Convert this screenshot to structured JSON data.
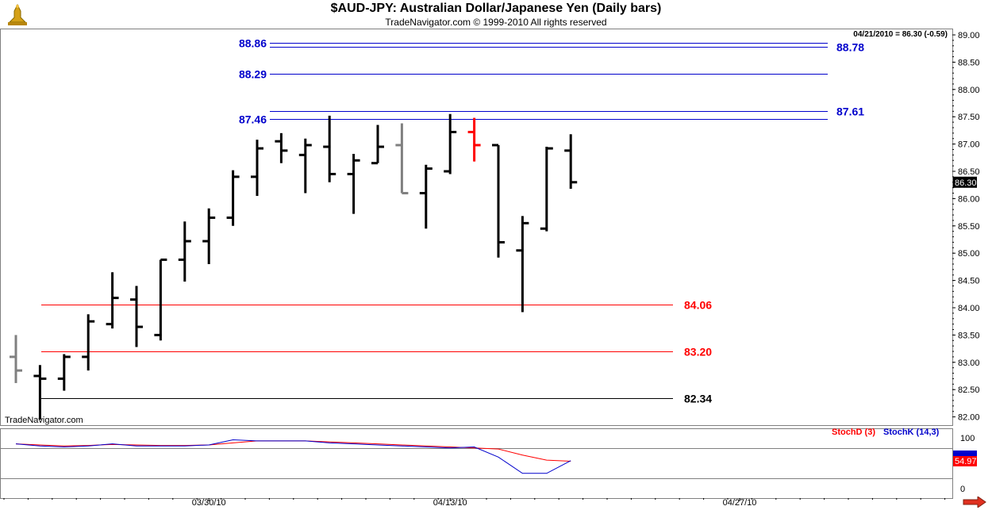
{
  "header": {
    "title": "$AUD-JPY:  Australian Dollar/Japanese Yen  (Daily bars)",
    "copyright": "TradeNavigator.com © 1999-2010 All rights reserved"
  },
  "watermark": "TradeNavigator.com",
  "logo_icon": "gold-bell-logo-icon",
  "nav_icon": "scroll-right-arrow-icon",
  "colors": {
    "bar_black": "#000000",
    "bar_gray": "#808080",
    "bar_red": "#ff0000",
    "blue_line": "#0000cc",
    "red_line": "#ff0000",
    "stoch_d": "#ff0000",
    "stoch_k": "#0000cc"
  },
  "chart_data": [
    {
      "type": "ohlc",
      "title": "$AUD-JPY:  Australian Dollar/Japanese Yen  (Daily bars)",
      "y_axis_side": "right",
      "ylim": [
        81.92,
        89.06
      ],
      "y_ticks": [
        "89.00",
        "88.50",
        "88.00",
        "87.50",
        "87.00",
        "86.50",
        "86.00",
        "85.50",
        "85.00",
        "84.50",
        "84.00",
        "83.50",
        "83.00",
        "82.50",
        "82.00"
      ],
      "last_price_label": "86.30",
      "info_text": "04/21/2010 = 86.30 (-0.59)",
      "x_ticks": [
        {
          "label": "03/30/10",
          "bar": 8
        },
        {
          "label": "04/13/10",
          "bar": 18
        },
        {
          "label": "04/27/10",
          "bar": 30
        }
      ],
      "bars": [
        {
          "o": 83.1,
          "h": 83.5,
          "l": 82.62,
          "c": 82.85,
          "color": "gray"
        },
        {
          "o": 82.75,
          "h": 82.95,
          "l": 81.95,
          "c": 82.7,
          "color": "black"
        },
        {
          "o": 82.7,
          "h": 83.15,
          "l": 82.48,
          "c": 83.1,
          "color": "black"
        },
        {
          "o": 83.1,
          "h": 83.88,
          "l": 82.85,
          "c": 83.75,
          "color": "black"
        },
        {
          "o": 83.7,
          "h": 84.65,
          "l": 83.62,
          "c": 84.18,
          "color": "black"
        },
        {
          "o": 84.15,
          "h": 84.4,
          "l": 83.28,
          "c": 83.65,
          "color": "black"
        },
        {
          "o": 83.5,
          "h": 84.88,
          "l": 83.4,
          "c": 84.88,
          "color": "black"
        },
        {
          "o": 84.88,
          "h": 85.58,
          "l": 84.48,
          "c": 85.22,
          "color": "black"
        },
        {
          "o": 85.22,
          "h": 85.82,
          "l": 84.8,
          "c": 85.65,
          "color": "black"
        },
        {
          "o": 85.65,
          "h": 86.52,
          "l": 85.5,
          "c": 86.4,
          "color": "black"
        },
        {
          "o": 86.4,
          "h": 87.08,
          "l": 86.05,
          "c": 86.92,
          "color": "black"
        },
        {
          "o": 87.05,
          "h": 87.2,
          "l": 86.65,
          "c": 86.88,
          "color": "black"
        },
        {
          "o": 86.8,
          "h": 87.1,
          "l": 86.1,
          "c": 86.98,
          "color": "black"
        },
        {
          "o": 86.95,
          "h": 87.52,
          "l": 86.3,
          "c": 86.45,
          "color": "black"
        },
        {
          "o": 86.45,
          "h": 86.82,
          "l": 85.72,
          "c": 86.7,
          "color": "black"
        },
        {
          "o": 86.65,
          "h": 87.35,
          "l": 86.65,
          "c": 86.95,
          "color": "black"
        },
        {
          "o": 86.98,
          "h": 87.38,
          "l": 86.1,
          "c": 86.1,
          "color": "gray"
        },
        {
          "o": 86.1,
          "h": 86.62,
          "l": 85.45,
          "c": 86.55,
          "color": "black"
        },
        {
          "o": 86.5,
          "h": 87.55,
          "l": 86.45,
          "c": 87.22,
          "color": "black"
        },
        {
          "o": 87.22,
          "h": 87.48,
          "l": 86.68,
          "c": 86.98,
          "color": "red"
        },
        {
          "o": 86.98,
          "h": 86.98,
          "l": 84.92,
          "c": 85.2,
          "color": "black"
        },
        {
          "o": 85.05,
          "h": 85.68,
          "l": 83.92,
          "c": 85.55,
          "color": "black"
        },
        {
          "o": 85.45,
          "h": 86.95,
          "l": 85.4,
          "c": 86.92,
          "color": "black"
        },
        {
          "o": 86.88,
          "h": 87.18,
          "l": 86.18,
          "c": 86.3,
          "color": "black"
        }
      ],
      "levels": [
        {
          "value": 88.86,
          "label": "88.86",
          "color": "blue",
          "label_side": "left"
        },
        {
          "value": 88.78,
          "label": "88.78",
          "color": "blue",
          "label_side": "right"
        },
        {
          "value": 88.29,
          "label": "88.29",
          "color": "blue",
          "label_side": "left"
        },
        {
          "value": 87.61,
          "label": "87.61",
          "color": "blue",
          "label_side": "right"
        },
        {
          "value": 87.46,
          "label": "87.46",
          "color": "blue",
          "label_side": "left"
        },
        {
          "value": 84.06,
          "label": "84.06",
          "color": "red",
          "label_side": "right"
        },
        {
          "value": 83.2,
          "label": "83.20",
          "color": "red",
          "label_side": "right"
        },
        {
          "value": 82.34,
          "label": "82.34",
          "color": "black",
          "label_side": "right"
        }
      ]
    },
    {
      "type": "line",
      "ylim": [
        0,
        100
      ],
      "y_ticks": [
        "100",
        "50",
        "0"
      ],
      "grid_levels": [
        80,
        20
      ],
      "legend": [
        "StochD (3)",
        "StochK (14,3)"
      ],
      "value_badges": [
        "54.97"
      ],
      "series": [
        {
          "name": "StochD (3)",
          "color": "red",
          "values": [
            88,
            86,
            84,
            85,
            87,
            86,
            85,
            85,
            86,
            90,
            94,
            94,
            94,
            92,
            90,
            88,
            86,
            84,
            82,
            80,
            78,
            66,
            56,
            54
          ]
        },
        {
          "name": "StochK (14,3)",
          "color": "blue",
          "values": [
            88,
            84,
            82,
            84,
            88,
            84,
            84,
            84,
            86,
            96,
            94,
            94,
            94,
            90,
            88,
            86,
            84,
            82,
            80,
            82,
            62,
            30,
            30,
            55
          ]
        }
      ]
    }
  ]
}
